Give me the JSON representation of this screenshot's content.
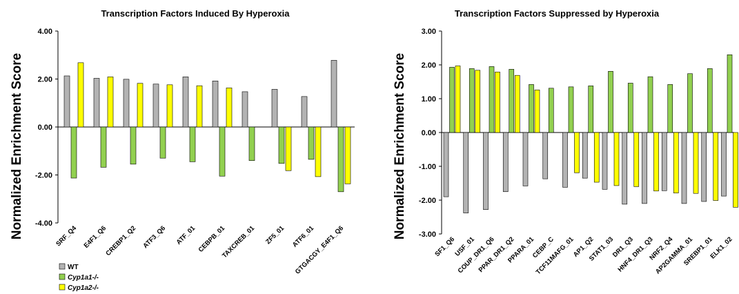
{
  "colors": {
    "WT": "#b3b3b3",
    "Cyp1a1-/-": "#92d050",
    "Cyp1a2-/-": "#ffff00",
    "stroke": "#000000"
  },
  "legend": [
    "WT",
    "Cyp1a1-/-",
    "Cyp1a2-/-"
  ],
  "chart_data": [
    {
      "type": "bar",
      "title": "Transcription Factors Induced By Hyperoxia",
      "ylabel": "Normalized Enrichment Score",
      "xlabel": "",
      "ylim": [
        -4,
        4
      ],
      "yticks": [
        "4.00",
        "2.00",
        "0.00",
        "-2.00",
        "-4.00"
      ],
      "grid": false,
      "legend_position": "bottom-left",
      "categories": [
        "SRF_Q4",
        "E4F1_Q6",
        "CREBP1_Q2",
        "ATF3_Q6",
        "ATF_01",
        "CEBPB_01",
        "TAXCREB_01",
        "ZF5_01",
        "ATF6_01",
        "GTGACGY_E4F1_Q6"
      ],
      "series": [
        {
          "name": "WT",
          "values": [
            2.13,
            2.03,
            1.99,
            1.79,
            2.09,
            1.92,
            1.47,
            1.57,
            1.27,
            2.78
          ]
        },
        {
          "name": "Cyp1a1-/-",
          "values": [
            -2.13,
            -1.68,
            -1.55,
            -1.3,
            -1.45,
            -2.05,
            -1.4,
            -1.52,
            -1.35,
            -2.7
          ]
        },
        {
          "name": "Cyp1a2-/-",
          "values": [
            2.68,
            2.09,
            1.82,
            1.76,
            1.72,
            1.63,
            null,
            -1.82,
            -2.07,
            -2.37
          ]
        }
      ]
    },
    {
      "type": "bar",
      "title": "Transcription Factors Suppressed by Hyperoxia",
      "ylabel": "Normalized Enrichment Score",
      "xlabel": "",
      "ylim": [
        -3,
        3
      ],
      "yticks": [
        "3.00",
        "2.00",
        "1.00",
        "0.00",
        "-1.00",
        "-2.00",
        "-3.00"
      ],
      "grid": false,
      "categories": [
        "SF1_Q6",
        "USF_01",
        "COUP_DR1_Q6",
        "PPAR_DR1_Q2",
        "PPARA_01",
        "CEBP_C",
        "TCF11MAFG_01",
        "AP1_Q2",
        "STAT1_03",
        "DR1_Q3",
        "HNF4_DR1_Q3",
        "NRF2_Q4",
        "AP2GAMMA_01",
        "SREBP1_01",
        "ELK1_02"
      ],
      "series": [
        {
          "name": "WT",
          "values": [
            -1.9,
            -2.38,
            -2.28,
            -1.75,
            -1.58,
            -1.37,
            -1.62,
            -1.35,
            -1.68,
            -2.12,
            -2.1,
            -1.72,
            -2.1,
            -2.04,
            -1.88
          ]
        },
        {
          "name": "Cyp1a1-/-",
          "values": [
            1.93,
            1.89,
            1.95,
            1.87,
            1.42,
            1.31,
            1.35,
            1.38,
            1.81,
            1.46,
            1.65,
            1.42,
            1.74,
            1.89,
            2.3
          ]
        },
        {
          "name": "Cyp1a2-/-",
          "values": [
            1.97,
            1.84,
            1.79,
            1.69,
            1.26,
            null,
            -1.19,
            -1.47,
            -1.57,
            -1.6,
            -1.73,
            -1.79,
            -1.8,
            -2.01,
            -2.21
          ]
        }
      ]
    }
  ]
}
